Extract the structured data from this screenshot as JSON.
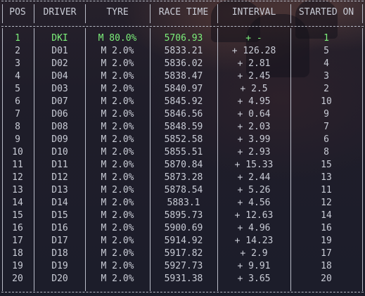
{
  "columns": [
    "POS",
    "DRIVER",
    "TYRE",
    "RACE TIME",
    "INTERVAL",
    "STARTED ON"
  ],
  "rows": [
    {
      "pos": "1",
      "driver": "DKI",
      "tyre": "M 80.0%",
      "time": "5706.93",
      "interval": "+ -",
      "started": "1",
      "leader": true
    },
    {
      "pos": "2",
      "driver": "D01",
      "tyre": "M 2.0%",
      "time": "5833.21",
      "interval": "+ 126.28",
      "started": "5"
    },
    {
      "pos": "3",
      "driver": "D02",
      "tyre": "M 2.0%",
      "time": "5836.02",
      "interval": "+ 2.81",
      "started": "4"
    },
    {
      "pos": "4",
      "driver": "D04",
      "tyre": "M 2.0%",
      "time": "5838.47",
      "interval": "+ 2.45",
      "started": "3"
    },
    {
      "pos": "5",
      "driver": "D03",
      "tyre": "M 2.0%",
      "time": "5840.97",
      "interval": "+ 2.5",
      "started": "2"
    },
    {
      "pos": "6",
      "driver": "D07",
      "tyre": "M 2.0%",
      "time": "5845.92",
      "interval": "+ 4.95",
      "started": "10"
    },
    {
      "pos": "7",
      "driver": "D06",
      "tyre": "M 2.0%",
      "time": "5846.56",
      "interval": "+ 0.64",
      "started": "9"
    },
    {
      "pos": "8",
      "driver": "D08",
      "tyre": "M 2.0%",
      "time": "5848.59",
      "interval": "+ 2.03",
      "started": "7"
    },
    {
      "pos": "9",
      "driver": "D09",
      "tyre": "M 2.0%",
      "time": "5852.58",
      "interval": "+ 3.99",
      "started": "6"
    },
    {
      "pos": "10",
      "driver": "D10",
      "tyre": "M 2.0%",
      "time": "5855.51",
      "interval": "+ 2.93",
      "started": "8"
    },
    {
      "pos": "11",
      "driver": "D11",
      "tyre": "M 2.0%",
      "time": "5870.84",
      "interval": "+ 15.33",
      "started": "15"
    },
    {
      "pos": "12",
      "driver": "D12",
      "tyre": "M 2.0%",
      "time": "5873.28",
      "interval": "+ 2.44",
      "started": "13"
    },
    {
      "pos": "13",
      "driver": "D13",
      "tyre": "M 2.0%",
      "time": "5878.54",
      "interval": "+ 5.26",
      "started": "11"
    },
    {
      "pos": "14",
      "driver": "D14",
      "tyre": "M 2.0%",
      "time": "5883.1",
      "interval": "+ 4.56",
      "started": "12"
    },
    {
      "pos": "15",
      "driver": "D15",
      "tyre": "M 2.0%",
      "time": "5895.73",
      "interval": "+ 12.63",
      "started": "14"
    },
    {
      "pos": "16",
      "driver": "D16",
      "tyre": "M 2.0%",
      "time": "5900.69",
      "interval": "+ 4.96",
      "started": "16"
    },
    {
      "pos": "17",
      "driver": "D17",
      "tyre": "M 2.0%",
      "time": "5914.92",
      "interval": "+ 14.23",
      "started": "19"
    },
    {
      "pos": "18",
      "driver": "D18",
      "tyre": "M 2.0%",
      "time": "5917.82",
      "interval": "+ 2.9",
      "started": "17"
    },
    {
      "pos": "19",
      "driver": "D19",
      "tyre": "M 2.0%",
      "time": "5927.73",
      "interval": "+ 9.91",
      "started": "18"
    },
    {
      "pos": "20",
      "driver": "D20",
      "tyre": "M 2.0%",
      "time": "5931.38",
      "interval": "+ 3.65",
      "started": "20"
    }
  ],
  "colors": {
    "text": "#c9ccd6",
    "leader": "#7cf07a",
    "background": "#1c1d2a"
  }
}
